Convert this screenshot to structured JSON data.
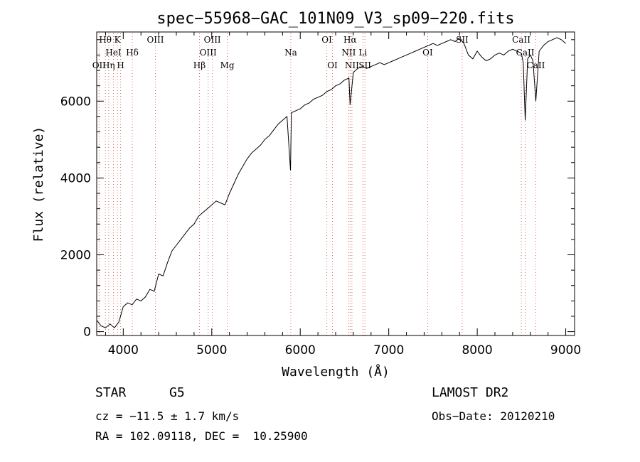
{
  "chart_data": {
    "type": "line",
    "title": "spec−55968−GAC_101N09_V3_sp09−220.fits",
    "xlabel": "Wavelength (Å)",
    "ylabel": "Flux (relative)",
    "xlim": [
      3700,
      9100
    ],
    "ylim": [
      -100,
      7800
    ],
    "xticks": [
      4000,
      5000,
      6000,
      7000,
      8000,
      9000
    ],
    "yticks": [
      0,
      2000,
      4000,
      6000
    ],
    "grid": false,
    "series": [
      {
        "x": [
          3700,
          3750,
          3800,
          3850,
          3900,
          3950,
          4000,
          4050,
          4100,
          4150,
          4200,
          4250,
          4300,
          4350,
          4400,
          4450,
          4500,
          4550,
          4600,
          4650,
          4700,
          4750,
          4800,
          4850,
          4900,
          4950,
          5000,
          5050,
          5100,
          5150,
          5200,
          5250,
          5300,
          5350,
          5400,
          5450,
          5500,
          5550,
          5600,
          5650,
          5700,
          5750,
          5800,
          5850,
          5890,
          5900,
          5950,
          6000,
          6050,
          6100,
          6150,
          6200,
          6250,
          6300,
          6350,
          6400,
          6450,
          6500,
          6550,
          6563,
          6600,
          6650,
          6700,
          6750,
          6800,
          6850,
          6900,
          6950,
          7000,
          7050,
          7100,
          7150,
          7200,
          7250,
          7300,
          7350,
          7400,
          7450,
          7500,
          7550,
          7600,
          7650,
          7700,
          7750,
          7800,
          7850,
          7900,
          7950,
          8000,
          8050,
          8100,
          8150,
          8200,
          8250,
          8300,
          8350,
          8400,
          8450,
          8498,
          8520,
          8542,
          8570,
          8600,
          8630,
          8662,
          8700,
          8750,
          8800,
          8850,
          8900,
          8950,
          9000
        ],
        "y": [
          300,
          150,
          100,
          200,
          100,
          250,
          650,
          750,
          700,
          850,
          800,
          900,
          1100,
          1050,
          1500,
          1450,
          1800,
          2100,
          2250,
          2400,
          2550,
          2700,
          2800,
          3000,
          3100,
          3200,
          3300,
          3400,
          3350,
          3300,
          3600,
          3850,
          4100,
          4300,
          4500,
          4650,
          4750,
          4850,
          5000,
          5100,
          5250,
          5400,
          5500,
          5600,
          4200,
          5700,
          5750,
          5800,
          5900,
          5950,
          6050,
          6100,
          6150,
          6250,
          6300,
          6400,
          6450,
          6550,
          6600,
          5900,
          6750,
          6850,
          6900,
          6850,
          6900,
          6950,
          7000,
          6950,
          7000,
          7050,
          7100,
          7150,
          7200,
          7250,
          7300,
          7350,
          7400,
          7450,
          7500,
          7450,
          7500,
          7550,
          7600,
          7550,
          7650,
          7500,
          7200,
          7100,
          7300,
          7150,
          7050,
          7100,
          7200,
          7250,
          7200,
          7300,
          7350,
          7300,
          7250,
          7000,
          5500,
          7100,
          7200,
          7050,
          6000,
          7300,
          7450,
          7550,
          7600,
          7650,
          7600,
          7500
        ]
      }
    ],
    "lines": {
      "lines_color": "#e06666",
      "annotations": [
        {
          "label": "Hθ",
          "x": 3798,
          "row": 0
        },
        {
          "label": "K",
          "x": 3934,
          "row": 0
        },
        {
          "label": "OIII",
          "x": 4363,
          "row": 0
        },
        {
          "label": "OIII",
          "x": 5007,
          "row": 0
        },
        {
          "label": "OI",
          "x": 6300,
          "row": 0
        },
        {
          "label": "Hα",
          "x": 6563,
          "row": 0
        },
        {
          "label": "SII",
          "x": 7830,
          "row": 0
        },
        {
          "label": "CaII",
          "x": 8498,
          "row": 0
        },
        {
          "label": "HeI",
          "x": 3889,
          "row": 1
        },
        {
          "label": "Hδ",
          "x": 4102,
          "row": 1
        },
        {
          "label": "OIII",
          "x": 4959,
          "row": 1
        },
        {
          "label": "Na",
          "x": 5893,
          "row": 1
        },
        {
          "label": "NII",
          "x": 6548,
          "row": 1
        },
        {
          "label": "Li",
          "x": 6708,
          "row": 1
        },
        {
          "label": "OI",
          "x": 7440,
          "row": 1
        },
        {
          "label": "CaII",
          "x": 8542,
          "row": 1
        },
        {
          "label": "OII",
          "x": 3727,
          "row": 2
        },
        {
          "label": "Hη",
          "x": 3835,
          "row": 2
        },
        {
          "label": "H",
          "x": 3970,
          "row": 2
        },
        {
          "label": "Hβ",
          "x": 4861,
          "row": 2
        },
        {
          "label": "Mg",
          "x": 5175,
          "row": 2
        },
        {
          "label": "OI",
          "x": 6364,
          "row": 2
        },
        {
          "label": "NII",
          "x": 6584,
          "row": 2
        },
        {
          "label": "SII",
          "x": 6731,
          "row": 2
        },
        {
          "label": "CaII",
          "x": 8662,
          "row": 2
        }
      ]
    }
  },
  "footer": {
    "object_class": "STAR",
    "subclass": "G5",
    "survey": "LAMOST DR2",
    "cz": "cz = −11.5 ± 1.7 km/s",
    "obs_date": "Obs−Date: 20120210",
    "coords": "RA = 102.09118, DEC =  10.25900"
  }
}
